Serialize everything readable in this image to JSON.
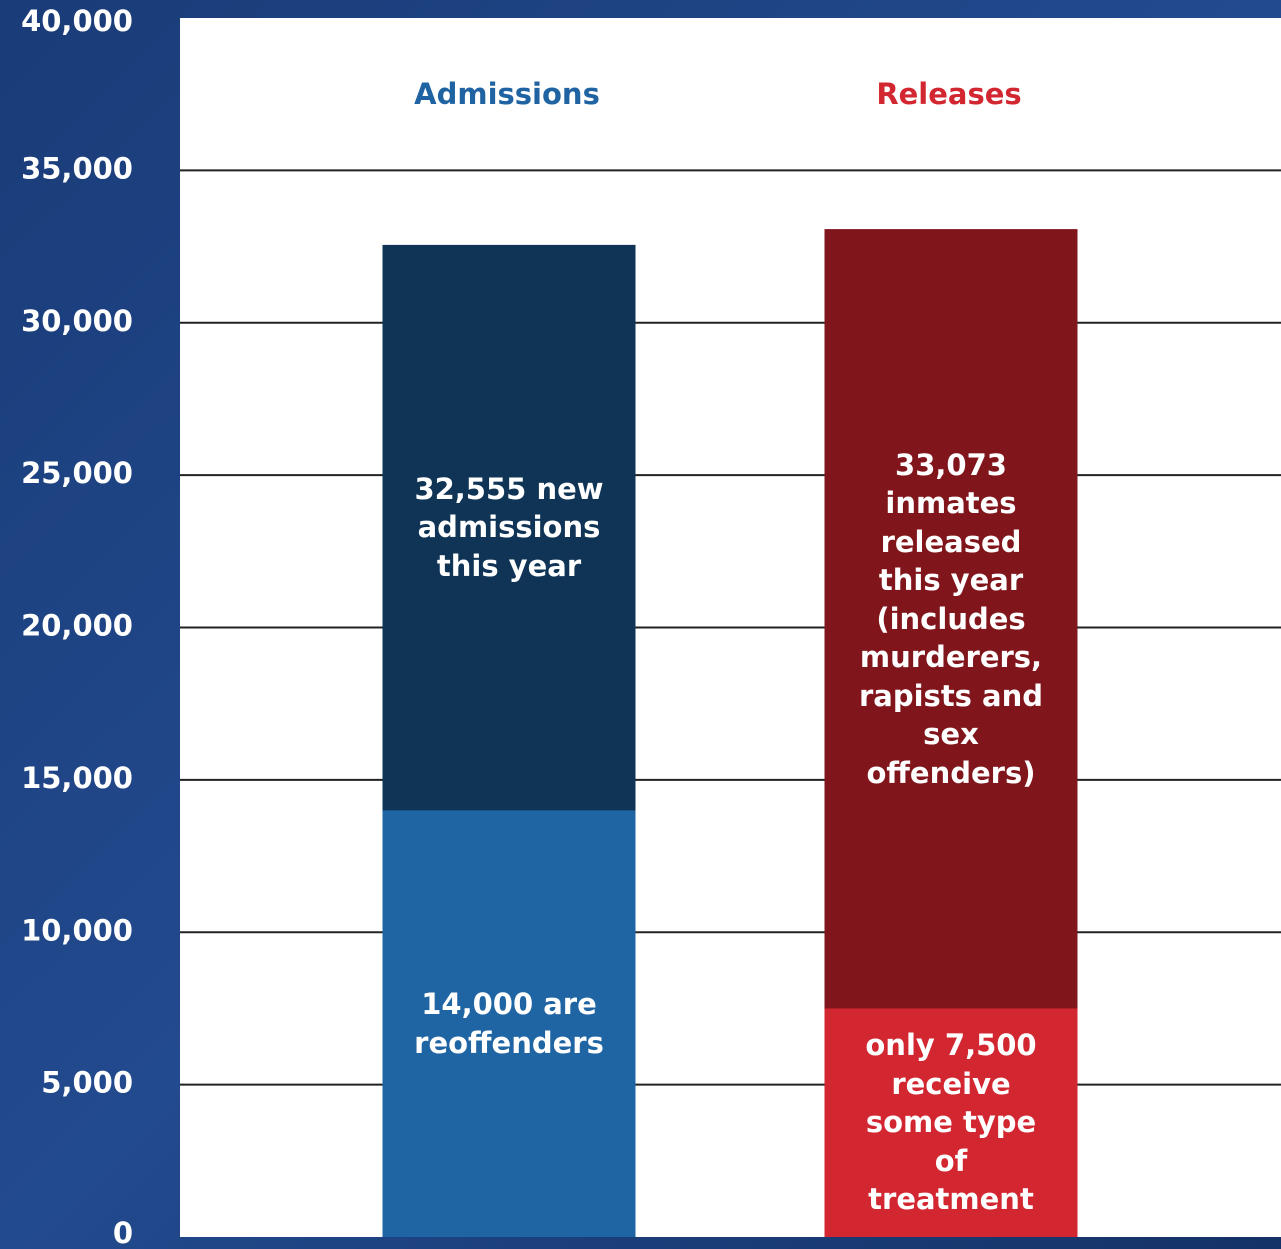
{
  "chart_data": {
    "type": "overlay-bar",
    "categories": [
      "Admissions",
      "Releases"
    ],
    "category_colors": [
      "#1f63a2",
      "#d22630"
    ],
    "series": [
      {
        "values": [
          32555,
          33073
        ],
        "colors": [
          "#0f3456",
          "#80161c"
        ],
        "value_labels": [
          "32,555 new admissions this year",
          "33,073 inmates released this year (includes murderers, rapists and sex offenders)"
        ]
      },
      {
        "values": [
          14000,
          7500
        ],
        "colors": [
          "#1f64a3",
          "#d22630"
        ],
        "value_labels": [
          "14,000 are reoffenders",
          "only 7,500 receive some type of treatment"
        ]
      }
    ],
    "ylim": [
      0,
      40000
    ],
    "yticks": [
      {
        "value": 0,
        "label": "0"
      },
      {
        "value": 5000,
        "label": "5,000"
      },
      {
        "value": 10000,
        "label": "10,000"
      },
      {
        "value": 15000,
        "label": "15,000"
      },
      {
        "value": 20000,
        "label": "20,000"
      },
      {
        "value": 25000,
        "label": "25,000"
      },
      {
        "value": 30000,
        "label": "30,000"
      },
      {
        "value": 35000,
        "label": "35,000"
      },
      {
        "value": 40000,
        "label": "40,000"
      }
    ],
    "grid": true
  }
}
